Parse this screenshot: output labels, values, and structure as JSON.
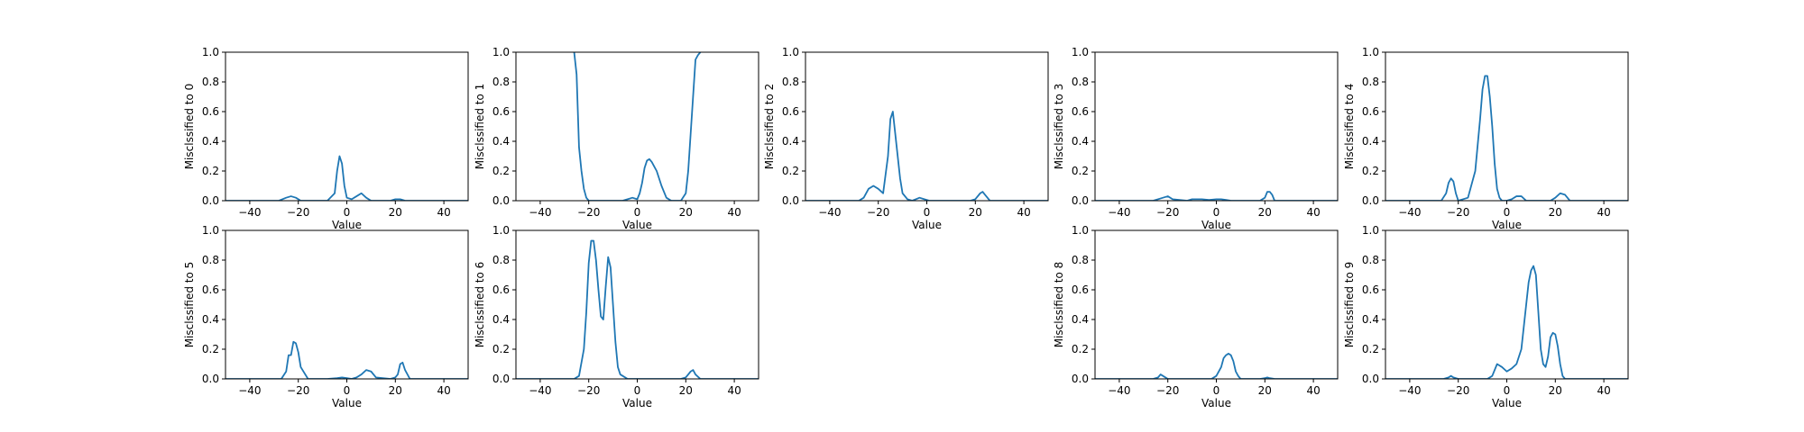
{
  "figure": {
    "background": "#ffffff",
    "line_color": "#1f77b4"
  },
  "chart_data": [
    {
      "type": "line",
      "ylabel": "Misclssified to 0",
      "xlabel": "Value",
      "xlim": [
        -50,
        50
      ],
      "ylim": [
        0,
        1
      ],
      "xticks": [
        "−40",
        "−20",
        "0",
        "20",
        "40"
      ],
      "yticks": [
        "0.0",
        "0.2",
        "0.4",
        "0.6",
        "0.8",
        "1.0"
      ],
      "x": [
        -50,
        -28,
        -25,
        -23,
        -21,
        -19,
        -8,
        -5,
        -4,
        -3,
        -2,
        -1,
        0,
        2,
        4,
        6,
        8,
        10,
        18,
        20,
        22,
        24,
        50
      ],
      "y": [
        0,
        0,
        0.02,
        0.03,
        0.02,
        0,
        0,
        0.05,
        0.2,
        0.3,
        0.25,
        0.1,
        0.02,
        0.01,
        0.03,
        0.05,
        0.02,
        0,
        0,
        0.01,
        0.01,
        0,
        0
      ]
    },
    {
      "type": "line",
      "ylabel": "Misclssified to 1",
      "xlabel": "Value",
      "xlim": [
        -50,
        50
      ],
      "ylim": [
        0,
        1
      ],
      "xticks": [
        "−40",
        "−20",
        "0",
        "20",
        "40"
      ],
      "yticks": [
        "0.0",
        "0.2",
        "0.4",
        "0.6",
        "0.8",
        "1.0"
      ],
      "x": [
        -26,
        -25,
        -24,
        -23,
        -22,
        -21,
        -20,
        -18,
        -10,
        -6,
        -4,
        -2,
        0,
        1,
        2,
        3,
        4,
        5,
        6,
        7,
        8,
        9,
        10,
        12,
        14,
        18,
        20,
        21,
        22,
        23,
        24,
        25,
        26
      ],
      "y": [
        1.0,
        0.85,
        0.36,
        0.2,
        0.08,
        0.02,
        0,
        0,
        0,
        0,
        0.01,
        0.02,
        0.01,
        0.05,
        0.12,
        0.22,
        0.27,
        0.28,
        0.26,
        0.23,
        0.2,
        0.15,
        0.1,
        0.02,
        0,
        0,
        0.05,
        0.2,
        0.45,
        0.7,
        0.95,
        0.98,
        1.0
      ]
    },
    {
      "type": "line",
      "ylabel": "Misclssified to 2",
      "xlabel": "Value",
      "xlim": [
        -50,
        50
      ],
      "ylim": [
        0,
        1
      ],
      "xticks": [
        "−40",
        "−20",
        "0",
        "20",
        "40"
      ],
      "yticks": [
        "0.0",
        "0.2",
        "0.4",
        "0.6",
        "0.8",
        "1.0"
      ],
      "x": [
        -50,
        -28,
        -26,
        -24,
        -22,
        -20,
        -18,
        -16,
        -15,
        -14,
        -13,
        -12,
        -11,
        -10,
        -8,
        -6,
        -3,
        -1,
        1,
        3,
        18,
        20,
        22,
        23,
        24,
        26,
        50
      ],
      "y": [
        0,
        0,
        0.02,
        0.08,
        0.1,
        0.08,
        0.05,
        0.3,
        0.55,
        0.6,
        0.45,
        0.3,
        0.15,
        0.05,
        0.01,
        0,
        0.02,
        0.01,
        0,
        0,
        0,
        0.01,
        0.05,
        0.06,
        0.04,
        0,
        0
      ]
    },
    {
      "type": "line",
      "ylabel": "Misclssified to 3",
      "xlabel": "Value",
      "xlim": [
        -50,
        50
      ],
      "ylim": [
        0,
        1
      ],
      "xticks": [
        "−40",
        "−20",
        "0",
        "20",
        "40"
      ],
      "yticks": [
        "0.0",
        "0.2",
        "0.4",
        "0.6",
        "0.8",
        "1.0"
      ],
      "x": [
        -50,
        -26,
        -22,
        -20,
        -18,
        -12,
        -10,
        -6,
        -3,
        0,
        2,
        4,
        6,
        18,
        20,
        21,
        22,
        23,
        24,
        50
      ],
      "y": [
        0,
        0,
        0.02,
        0.03,
        0.01,
        0,
        0.01,
        0.01,
        0.005,
        0.01,
        0.01,
        0.005,
        0,
        0,
        0.02,
        0.06,
        0.06,
        0.04,
        0,
        0
      ]
    },
    {
      "type": "line",
      "ylabel": "Misclssified to 4",
      "xlabel": "Value",
      "xlim": [
        -50,
        50
      ],
      "ylim": [
        0,
        1
      ],
      "xticks": [
        "−40",
        "−20",
        "0",
        "20",
        "40"
      ],
      "yticks": [
        "0.0",
        "0.2",
        "0.4",
        "0.6",
        "0.8",
        "1.0"
      ],
      "x": [
        -50,
        -27,
        -25,
        -24,
        -23,
        -22,
        -21,
        -20,
        -16,
        -13,
        -11,
        -10,
        -9,
        -8,
        -7,
        -6,
        -5,
        -4,
        -3,
        -2,
        0,
        2,
        4,
        6,
        8,
        18,
        20,
        22,
        24,
        26,
        50
      ],
      "y": [
        0,
        0,
        0.05,
        0.12,
        0.15,
        0.13,
        0.05,
        0,
        0.02,
        0.2,
        0.55,
        0.75,
        0.84,
        0.84,
        0.7,
        0.5,
        0.25,
        0.08,
        0.02,
        0,
        0,
        0.01,
        0.03,
        0.03,
        0,
        0,
        0.02,
        0.05,
        0.04,
        0,
        0
      ]
    },
    {
      "type": "line",
      "ylabel": "Misclssified to 5",
      "xlabel": "Value",
      "xlim": [
        -50,
        50
      ],
      "ylim": [
        0,
        1
      ],
      "xticks": [
        "−40",
        "−20",
        "0",
        "20",
        "40"
      ],
      "yticks": [
        "0.0",
        "0.2",
        "0.4",
        "0.6",
        "0.8",
        "1.0"
      ],
      "x": [
        -50,
        -27,
        -25,
        -24,
        -23,
        -22,
        -21,
        -20,
        -19,
        -16,
        -8,
        -4,
        -2,
        0,
        2,
        4,
        6,
        8,
        10,
        12,
        18,
        20,
        21,
        22,
        23,
        24,
        26,
        50
      ],
      "y": [
        0,
        0,
        0.05,
        0.16,
        0.16,
        0.25,
        0.24,
        0.18,
        0.08,
        0,
        0,
        0.005,
        0.01,
        0.005,
        0,
        0.01,
        0.03,
        0.06,
        0.05,
        0.01,
        0,
        0.01,
        0.03,
        0.1,
        0.11,
        0.06,
        0,
        0
      ]
    },
    {
      "type": "line",
      "ylabel": "Misclssified to 6",
      "xlabel": "Value",
      "xlim": [
        -50,
        50
      ],
      "ylim": [
        0,
        1
      ],
      "xticks": [
        "−40",
        "−20",
        "0",
        "20",
        "40"
      ],
      "yticks": [
        "0.0",
        "0.2",
        "0.4",
        "0.6",
        "0.8",
        "1.0"
      ],
      "x": [
        -50,
        -26,
        -24,
        -22,
        -21,
        -20,
        -19,
        -18,
        -17,
        -16,
        -15,
        -14,
        -13,
        -12,
        -11,
        -10,
        -9,
        -8,
        -7,
        -6,
        -4,
        0,
        18,
        20,
        22,
        23,
        24,
        26,
        50
      ],
      "y": [
        0,
        0,
        0.02,
        0.2,
        0.45,
        0.78,
        0.93,
        0.93,
        0.8,
        0.6,
        0.42,
        0.4,
        0.62,
        0.82,
        0.75,
        0.5,
        0.25,
        0.08,
        0.03,
        0.02,
        0,
        0,
        0,
        0.01,
        0.05,
        0.06,
        0.03,
        0,
        0
      ]
    },
    null,
    {
      "type": "line",
      "ylabel": "Misclssified to 8",
      "xlabel": "Value",
      "xlim": [
        -50,
        50
      ],
      "ylim": [
        0,
        1
      ],
      "xticks": [
        "−40",
        "−20",
        "0",
        "20",
        "40"
      ],
      "yticks": [
        "0.0",
        "0.2",
        "0.4",
        "0.6",
        "0.8",
        "1.0"
      ],
      "x": [
        -50,
        -26,
        -24,
        -23,
        -22,
        -20,
        -2,
        0,
        2,
        3,
        4,
        5,
        6,
        7,
        8,
        9,
        10,
        12,
        18,
        20,
        21,
        22,
        24,
        50
      ],
      "y": [
        0,
        0,
        0.01,
        0.03,
        0.02,
        0,
        0,
        0.02,
        0.08,
        0.14,
        0.16,
        0.17,
        0.16,
        0.12,
        0.05,
        0.02,
        0,
        0,
        0,
        0.005,
        0.01,
        0.005,
        0,
        0
      ]
    },
    {
      "type": "line",
      "ylabel": "Misclssified to 9",
      "xlabel": "Value",
      "xlim": [
        -50,
        50
      ],
      "ylim": [
        0,
        1
      ],
      "xticks": [
        "−40",
        "−20",
        "0",
        "20",
        "40"
      ],
      "yticks": [
        "0.0",
        "0.2",
        "0.4",
        "0.6",
        "0.8",
        "1.0"
      ],
      "x": [
        -50,
        -26,
        -24,
        -23,
        -22,
        -20,
        -8,
        -6,
        -4,
        -2,
        0,
        2,
        4,
        6,
        7,
        8,
        9,
        10,
        11,
        12,
        13,
        14,
        15,
        16,
        17,
        18,
        19,
        20,
        21,
        22,
        23,
        24,
        26,
        50
      ],
      "y": [
        0,
        0,
        0.01,
        0.02,
        0.01,
        0,
        0,
        0.02,
        0.1,
        0.08,
        0.05,
        0.07,
        0.1,
        0.2,
        0.35,
        0.5,
        0.65,
        0.73,
        0.76,
        0.7,
        0.45,
        0.2,
        0.1,
        0.08,
        0.15,
        0.28,
        0.31,
        0.3,
        0.22,
        0.1,
        0.02,
        0,
        0,
        0
      ]
    }
  ]
}
